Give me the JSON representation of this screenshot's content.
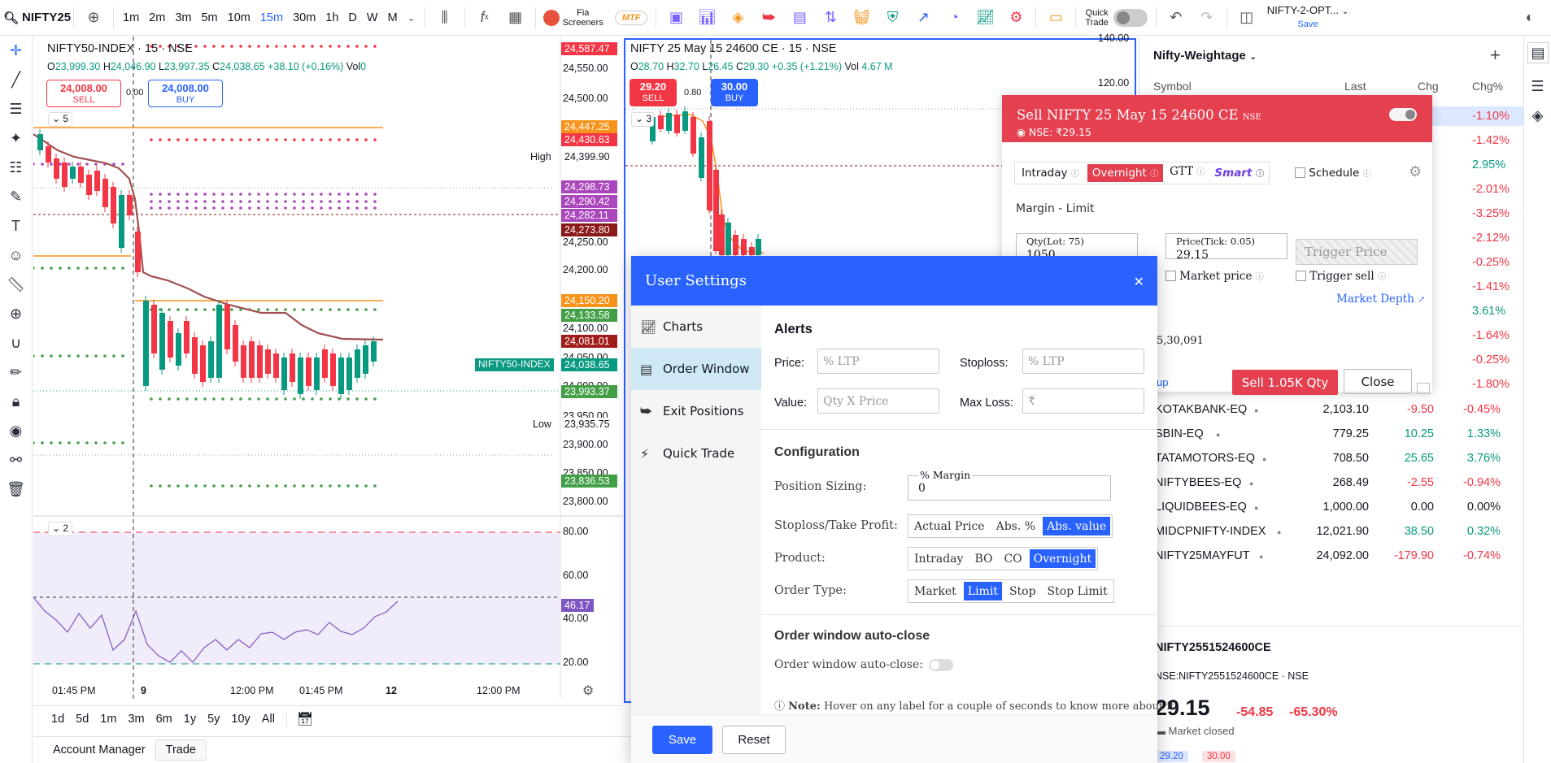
{
  "topbar": {
    "symbol": "NIFTY25",
    "intervals": [
      "1m",
      "2m",
      "3m",
      "5m",
      "10m",
      "15m",
      "30m",
      "1h",
      "D",
      "W",
      "M"
    ],
    "active_interval": "15m",
    "fia_label": "Fia",
    "screeners_label": "Screeners",
    "mtf_label": "MTF",
    "quick_trade_label": "Quick",
    "quick_trade_label2": "Trade",
    "layout_name": "NIFTY-2-OPT...",
    "save_label": "Save"
  },
  "chart_left": {
    "title": "NIFTY50-INDEX · 15 · NSE",
    "ohlc": {
      "o": "23,999.30",
      "h": "24,046.90",
      "l": "23,997.35",
      "c": "24,038.65",
      "chg": "+38.10 (+0.16%)",
      "vol": "Vol"
    },
    "o_lbl": "O",
    "h_lbl": "H",
    "l_lbl": "L",
    "c_lbl": "C",
    "vol_value": "0",
    "sell_price": "24,008.00",
    "sell_label": "SELL",
    "spread": "0.00",
    "buy_price": "24,008.00",
    "buy_label": "BUY",
    "collapse_count": "5",
    "osc_count": "2",
    "axis_prices": [
      "24,550.00",
      "24,500.00",
      "24,250.00",
      "24,200.00",
      "24,100.00",
      "24,050.00",
      "24,000.00",
      "23,950.00",
      "23,900.00",
      "23,850.00",
      "23,800.00"
    ],
    "tag_high": "High",
    "tag_high_val": "24,399.90",
    "tag_low": "Low",
    "tag_low_val": "23,935.75",
    "tag_index": "NIFTY50-INDEX",
    "price_boxes": [
      {
        "v": "24,587.47",
        "c": "#f23645"
      },
      {
        "v": "24,447.25",
        "c": "#f7931a"
      },
      {
        "v": "24,430.63",
        "c": "#f23645"
      },
      {
        "v": "24,298.73",
        "c": "#ab47bc"
      },
      {
        "v": "24,290.42",
        "c": "#ab47bc"
      },
      {
        "v": "24,282.11",
        "c": "#ab47bc"
      },
      {
        "v": "24,273.80",
        "c": "#8b1a1a"
      },
      {
        "v": "24,150.20",
        "c": "#f7931a"
      },
      {
        "v": "24,133.58",
        "c": "#43a047"
      },
      {
        "v": "24,081.01",
        "c": "#a31c1c"
      },
      {
        "v": "24,038.65",
        "c": "#089981"
      },
      {
        "v": "23,993.37",
        "c": "#43a047"
      },
      {
        "v": "23,836.53",
        "c": "#43a047"
      }
    ],
    "osc_axis": [
      "80.00",
      "60.00",
      "40.00",
      "20.00"
    ],
    "osc_value": "46.17",
    "time_labels": [
      "01:45 PM",
      "9",
      "12:00 PM",
      "01:45 PM",
      "12",
      "12:00 PM"
    ],
    "ranges": [
      "1d",
      "5d",
      "1m",
      "3m",
      "6m",
      "1y",
      "5y",
      "10y",
      "All"
    ]
  },
  "chart_right": {
    "title": "NIFTY 25 May 15 24600 CE · 15 · NSE",
    "ohlc": {
      "o": "28.70",
      "h": "32.70",
      "l": "26.45",
      "c": "29.30",
      "chg": "+0.35 (+1.21%)",
      "vol": "Vol",
      "vol_v": "4.67 M"
    },
    "o_lbl": "O",
    "h_lbl": "H",
    "l_lbl": "L",
    "c_lbl": "C",
    "sell_price": "29.20",
    "sell_label": "SELL",
    "spread": "0.80",
    "buy_price": "30.00",
    "buy_label": "BUY",
    "collapse_count": "3",
    "axis_prices": [
      "140.00",
      "120.00"
    ]
  },
  "watchlist": {
    "title": "Nifty-Weightage",
    "cols": [
      "Symbol",
      "Last",
      "Chg",
      "Chg%"
    ],
    "hidden_pcts": [
      "-1.10%",
      "-1.42%",
      "2.95%",
      "-2.01%",
      "-3.25%",
      "-2.12%",
      "-0.25%",
      "-1.41%",
      "3.61%",
      "-1.64%",
      "-0.25%",
      "-1.80%"
    ],
    "rows": [
      {
        "sym": "KOTAKBANK-EQ",
        "last": "2,103.10",
        "chg": "-9.50",
        "pct": "-0.45%"
      },
      {
        "sym": "SBIN-EQ",
        "last": "779.25",
        "chg": "10.25",
        "pct": "1.33%"
      },
      {
        "sym": "TATAMOTORS-EQ",
        "last": "708.50",
        "chg": "25.65",
        "pct": "3.76%"
      },
      {
        "sym": "NIFTYBEES-EQ",
        "last": "268.49",
        "chg": "-2.55",
        "pct": "-0.94%"
      },
      {
        "sym": "LIQUIDBEES-EQ",
        "last": "1,000.00",
        "chg": "0.00",
        "pct": "0.00%"
      },
      {
        "sym": "MIDCPNIFTY-INDEX",
        "last": "12,021.90",
        "chg": "38.50",
        "pct": "0.32%"
      },
      {
        "sym": "NIFTY25MAYFUT",
        "last": "24,092.00",
        "chg": "-179.90",
        "pct": "-0.74%"
      }
    ],
    "detail": {
      "symbol": "NIFTY2551524600CE",
      "exchange": "NSE:NIFTY2551524600CE · NSE",
      "price": "29.15",
      "chg": "-54.85",
      "pct": "-65.30%",
      "status": "Market closed",
      "bid": "29.20",
      "ask": "30.00"
    }
  },
  "sell_panel": {
    "title": "Sell NIFTY 25 May 15 24600 CE",
    "exch": "NSE",
    "ltp": "NSE: ₹29.15",
    "types": [
      "Intraday",
      "Overnight",
      "GTT",
      "Smart"
    ],
    "schedule": "Schedule",
    "margin_type": "Margin - Limit",
    "qty_label": "Qty(Lot: 75)",
    "qty_value": "1050",
    "price_label": "Price(Tick: 0.05)",
    "price_value": "29.15",
    "trigger_placeholder": "Trigger Price",
    "market_price": "Market price",
    "trigger_sell": "Trigger sell",
    "market_depth": "Market Depth",
    "margin_value": "5,30,091",
    "up_link": "up",
    "sell_button": "Sell 1.05K Qty",
    "close_button": "Close"
  },
  "settings": {
    "title": "User Settings",
    "menu": [
      "Charts",
      "Order Window",
      "Exit Positions",
      "Quick Trade"
    ],
    "active_menu": "Order Window",
    "alerts_heading": "Alerts",
    "price_label": "Price:",
    "price_ph": "% LTP",
    "stoploss_label": "Stoploss:",
    "stoploss_ph": "% LTP",
    "value_label": "Value:",
    "value_ph": "Qty X Price",
    "maxloss_label": "Max Loss:",
    "maxloss_ph": "₹",
    "config_heading": "Configuration",
    "position_sizing": "Position Sizing:",
    "margin_label": "% Margin",
    "margin_value": "0",
    "sltp_label": "Stoploss/Take Profit:",
    "sltp_opts": [
      "Actual Price",
      "Abs. %",
      "Abs. value"
    ],
    "product_label": "Product:",
    "product_opts": [
      "Intraday",
      "BO",
      "CO",
      "Overnight"
    ],
    "ordertype_label": "Order Type:",
    "ordertype_opts": [
      "Market",
      "Limit",
      "Stop",
      "Stop Limit"
    ],
    "autoclose_heading": "Order window auto-close",
    "autoclose_label": "Order window auto-close:",
    "note_bold": "Note:",
    "note_text": "Hover on any label for a couple of seconds to know more about it.",
    "save": "Save",
    "reset": "Reset"
  },
  "bottom": {
    "tabs": [
      "Account Manager",
      "Trade"
    ]
  }
}
